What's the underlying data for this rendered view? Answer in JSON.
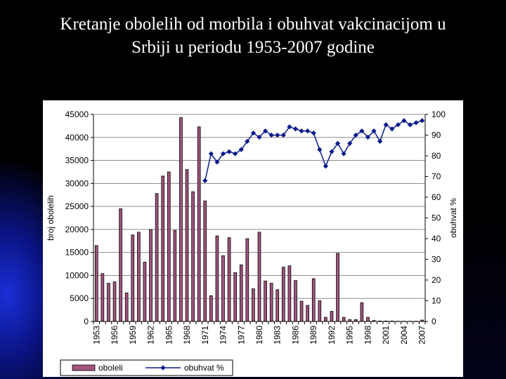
{
  "slide": {
    "title_line1": "Kretanje obolelih od morbila i obuhvat vakcinacijom u",
    "title_line2": "Srbiji u periodu 1953-2007 godine"
  },
  "chart_data": {
    "type": "bar+line",
    "years": [
      1953,
      1954,
      1955,
      1956,
      1957,
      1958,
      1959,
      1960,
      1961,
      1962,
      1963,
      1964,
      1965,
      1966,
      1967,
      1968,
      1969,
      1970,
      1971,
      1972,
      1973,
      1974,
      1975,
      1976,
      1977,
      1978,
      1979,
      1980,
      1981,
      1982,
      1983,
      1984,
      1985,
      1986,
      1987,
      1988,
      1989,
      1990,
      1991,
      1992,
      1993,
      1994,
      1995,
      1996,
      1997,
      1998,
      1999,
      2000,
      2001,
      2002,
      2003,
      2004,
      2005,
      2006,
      2007
    ],
    "x_tick_labels": [
      "1953",
      "1956",
      "1959",
      "1962",
      "1965",
      "1968",
      "1971",
      "1974",
      "1977",
      "1980",
      "1983",
      "1986",
      "1989",
      "1992",
      "1995",
      "1998",
      "2001",
      "2004",
      "2007"
    ],
    "series": [
      {
        "name": "oboleli",
        "kind": "bar",
        "axis": "left",
        "color": "#a3547e",
        "values": [
          16500,
          10400,
          8300,
          8600,
          24500,
          6200,
          18800,
          19400,
          12900,
          20000,
          27800,
          31600,
          32500,
          19800,
          44300,
          33000,
          28200,
          42300,
          26200,
          5600,
          18600,
          14300,
          18200,
          10600,
          12300,
          18000,
          7100,
          19400,
          8800,
          8300,
          6900,
          11800,
          12100,
          8900,
          4400,
          3500,
          9300,
          4500,
          900,
          2200,
          14800,
          900,
          400,
          400,
          4100,
          900,
          200,
          100,
          100,
          100,
          50,
          50,
          50,
          50,
          300
        ]
      },
      {
        "name": "obuhvat %",
        "kind": "line",
        "axis": "right",
        "color": "#0b1a8c",
        "start_year": 1971,
        "values": [
          68,
          81,
          77,
          81,
          82,
          81,
          83,
          87,
          91,
          89,
          92,
          90,
          90,
          90,
          94,
          93,
          92,
          92,
          91,
          83,
          75,
          82,
          86,
          81,
          86,
          90,
          92,
          89,
          92,
          87,
          95,
          93,
          95,
          97,
          95,
          96,
          97
        ]
      }
    ],
    "y_left": {
      "label": "broj obolelih",
      "ylim": [
        0,
        45000
      ],
      "ticks": [
        0,
        5000,
        10000,
        15000,
        20000,
        25000,
        30000,
        35000,
        40000,
        45000
      ]
    },
    "y_right": {
      "label": "obuhvat %",
      "ylim": [
        0,
        100
      ],
      "ticks": [
        0,
        10,
        20,
        30,
        40,
        50,
        60,
        70,
        80,
        90,
        100
      ]
    },
    "legend": {
      "position": "bottom",
      "items": [
        "oboleli",
        "obuhvat %"
      ]
    },
    "grid": true
  }
}
